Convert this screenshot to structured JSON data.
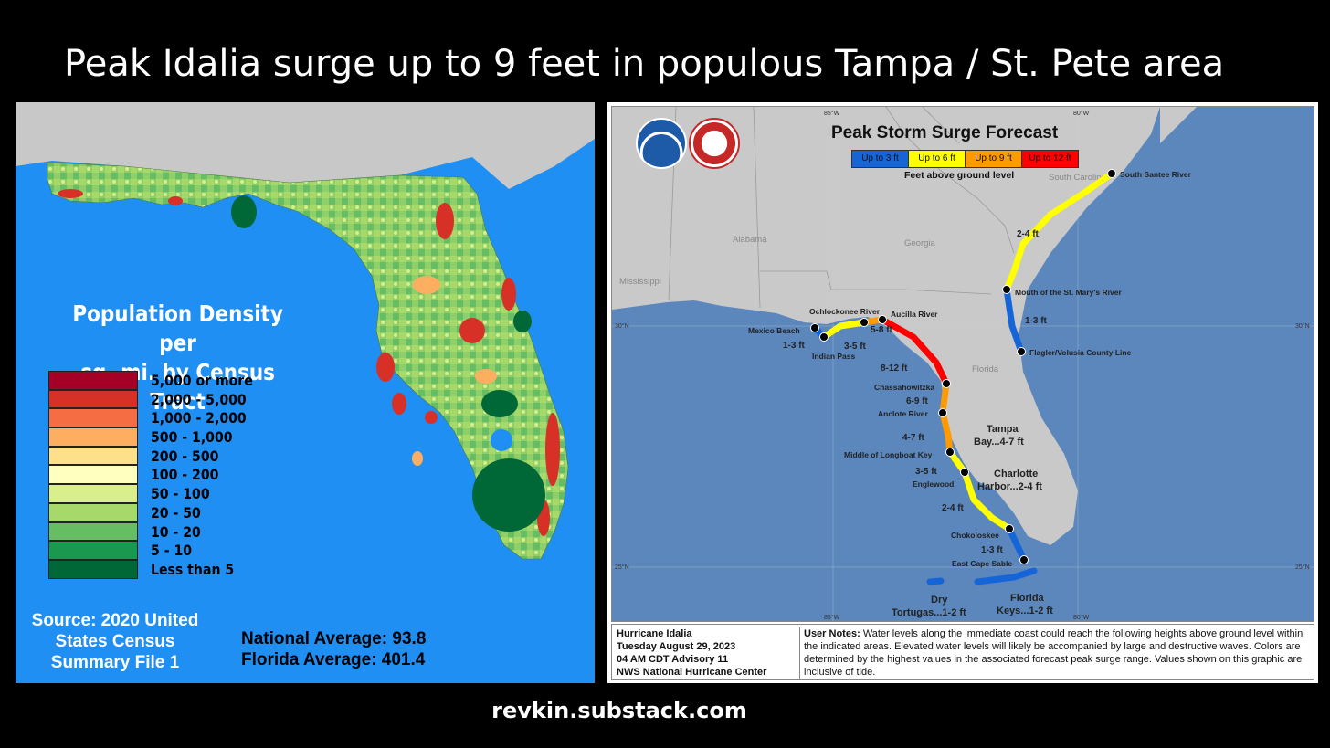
{
  "header": {
    "title": "Peak Idalia surge up to 9 feet in populous Tampa / St. Pete area"
  },
  "footer": {
    "credit": "revkin.substack.com"
  },
  "left_map": {
    "title_line1": "Population Density per",
    "title_line2": "sq. mi. by Census Tract",
    "legend": [
      {
        "label": "5,000 or more",
        "color": "#a50026"
      },
      {
        "label": "2,000 - 5,000",
        "color": "#d73027"
      },
      {
        "label": "1,000 - 2,000",
        "color": "#f46d43"
      },
      {
        "label": "500 - 1,000",
        "color": "#fdae61"
      },
      {
        "label": "200 - 500",
        "color": "#fee08b"
      },
      {
        "label": "100 - 200",
        "color": "#ffffbf"
      },
      {
        "label": "50 - 100",
        "color": "#d9ef8b"
      },
      {
        "label": "20 - 50",
        "color": "#a6d96a"
      },
      {
        "label": "10 - 20",
        "color": "#66bd63"
      },
      {
        "label": "5 - 10",
        "color": "#1a9850"
      },
      {
        "label": "Less than 5",
        "color": "#006837"
      }
    ],
    "source_line1": "Source: 2020 United",
    "source_line2": "States Census",
    "source_line3": "Summary File 1",
    "national_average": "National Average: 93.8",
    "florida_average": "Florida Average: 401.4"
  },
  "right_map": {
    "title": "Peak Storm Surge Forecast",
    "legend": [
      {
        "label": "Up to 3 ft",
        "color": "#1565d8"
      },
      {
        "label": "Up to 6 ft",
        "color": "#ffff00"
      },
      {
        "label": "Up to 9 ft",
        "color": "#ff9a00"
      },
      {
        "label": "Up to 12 ft",
        "color": "#ff0000"
      }
    ],
    "legend_caption": "Feet above ground level",
    "logos": [
      "noaa-logo",
      "nws-logo"
    ],
    "states": [
      "Alabama",
      "Georgia",
      "Mississippi",
      "Florida",
      "South Carolina"
    ],
    "coords": [
      "85°W",
      "80°W",
      "30°N",
      "25°N"
    ],
    "locations": [
      "South Santee River",
      "Mouth of the St. Mary's River",
      "Flagler/Volusia County Line",
      "Ochlockonee River",
      "Mexico Beach",
      "Indian Pass",
      "Aucilla River",
      "Chassahowitzka",
      "Anclote River",
      "Middle of Longboat Key",
      "Englewood",
      "Chokoloskee",
      "East Cape Sable"
    ],
    "surge_labels": [
      "2-4 ft",
      "1-3 ft",
      "1-3 ft",
      "3-5 ft",
      "5-8 ft",
      "8-12 ft",
      "6-9 ft",
      "4-7 ft",
      "3-5 ft",
      "2-4 ft",
      "1-3 ft"
    ],
    "area_labels": {
      "tampa_1": "Tampa",
      "tampa_2": "Bay...4-7 ft",
      "charlotte_1": "Charlotte",
      "charlotte_2": "Harbor...2-4 ft",
      "tortugas_1": "Dry",
      "tortugas_2": "Tortugas...1-2 ft",
      "keys_1": "Florida",
      "keys_2": "Keys...1-2 ft"
    },
    "advisory": {
      "line1": "Hurricane Idalia",
      "line2": "Tuesday August 29, 2023",
      "line3": "04 AM CDT Advisory 11",
      "line4": "NWS National Hurricane Center"
    },
    "user_notes_label": "User Notes:",
    "user_notes": "Water levels along the immediate coast could reach the following heights above ground level within the indicated areas. Elevated water levels will likely be accompanied by large and destructive waves. Colors are determined by the highest values in the associated forecast peak surge range. Values shown on this graphic are inclusive of tide."
  }
}
